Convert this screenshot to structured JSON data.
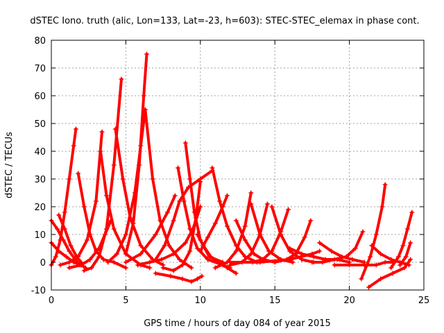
{
  "chart_data": {
    "type": "scatter",
    "title": "dSTEC Iono. truth (alic, Lon=133, Lat=-23, h=603): STEC-STEC_elemax in phase cont.",
    "xlabel": "GPS time / hours of day 084 of year 2015",
    "ylabel": "dSTEC  / TECUs",
    "xlim": [
      0,
      25
    ],
    "ylim": [
      -10,
      80
    ],
    "xticks": [
      "0",
      "5",
      "10",
      "15",
      "20",
      "25"
    ],
    "yticks": [
      "-10",
      "0",
      "10",
      "20",
      "30",
      "40",
      "50",
      "60",
      "70",
      "80"
    ],
    "grid": true,
    "marker": "plus",
    "color": "#ff0000",
    "series": [
      {
        "x": [
          0.0,
          0.3,
          0.6,
          0.9,
          1.2,
          1.5,
          1.65
        ],
        "y": [
          -1,
          2,
          8,
          18,
          30,
          42,
          48
        ]
      },
      {
        "x": [
          0.0,
          0.4,
          0.8,
          1.2,
          1.6,
          1.9
        ],
        "y": [
          15,
          12,
          8,
          4,
          1,
          -1
        ]
      },
      {
        "x": [
          0.0,
          0.5,
          1.0,
          1.5,
          2.0,
          2.3
        ],
        "y": [
          7,
          4,
          2,
          0,
          -1,
          -2
        ]
      },
      {
        "x": [
          0.6,
          1.2,
          1.8,
          2.4,
          3.0,
          3.4
        ],
        "y": [
          -1,
          0,
          2,
          8,
          22,
          47
        ]
      },
      {
        "x": [
          0.5,
          0.9,
          1.3,
          1.7,
          2.0
        ],
        "y": [
          17,
          12,
          6,
          2,
          0
        ]
      },
      {
        "x": [
          1.8,
          2.2,
          2.6,
          3.0,
          3.5,
          4.2,
          5.0
        ],
        "y": [
          32,
          20,
          10,
          4,
          1,
          0,
          -2
        ]
      },
      {
        "x": [
          2.2,
          2.7,
          3.2,
          3.7,
          4.2,
          4.7
        ],
        "y": [
          -3,
          -2,
          2,
          12,
          35,
          66
        ]
      },
      {
        "x": [
          1.2,
          2.0,
          2.6,
          3.2,
          3.6,
          4.0
        ],
        "y": [
          -2,
          -1,
          1,
          5,
          10,
          15
        ]
      },
      {
        "x": [
          3.3,
          3.7,
          4.2,
          5.0,
          6.0,
          6.6
        ],
        "y": [
          40,
          24,
          12,
          3,
          -1,
          -2
        ]
      },
      {
        "x": [
          3.8,
          4.4,
          5.0,
          5.6,
          6.0,
          6.3
        ],
        "y": [
          0,
          3,
          10,
          25,
          42,
          55
        ]
      },
      {
        "x": [
          4.3,
          4.8,
          5.3,
          6.0,
          6.8,
          7.5
        ],
        "y": [
          48,
          30,
          16,
          6,
          1,
          -1
        ]
      },
      {
        "x": [
          5.0,
          5.5,
          5.9,
          6.2,
          6.4
        ],
        "y": [
          3,
          14,
          35,
          60,
          75
        ]
      },
      {
        "x": [
          6.3,
          6.8,
          7.3,
          7.9,
          8.6,
          9.4
        ],
        "y": [
          55,
          30,
          15,
          6,
          1,
          -2
        ]
      },
      {
        "x": [
          5.0,
          6.0,
          7.0,
          7.8,
          8.3
        ],
        "y": [
          0,
          3,
          10,
          18,
          24
        ]
      },
      {
        "x": [
          7.0,
          7.6,
          8.2,
          8.6,
          9.2,
          10.0,
          10.8
        ],
        "y": [
          1,
          6,
          15,
          22,
          27,
          30,
          33
        ]
      },
      {
        "x": [
          5.8,
          6.6,
          7.4,
          8.2,
          9.0,
          9.5,
          10.0
        ],
        "y": [
          -1,
          0,
          1,
          3,
          7,
          12,
          20
        ]
      },
      {
        "x": [
          7.5,
          8.2,
          8.8,
          9.3,
          9.7,
          10.0
        ],
        "y": [
          -2,
          -3,
          -1,
          4,
          16,
          29
        ]
      },
      {
        "x": [
          8.5,
          8.9,
          9.3,
          9.8,
          10.5,
          11.5,
          12.0
        ],
        "y": [
          34,
          22,
          12,
          5,
          1,
          -1,
          -2
        ]
      },
      {
        "x": [
          9.0,
          9.3,
          9.6,
          10.0,
          10.6,
          11.5
        ],
        "y": [
          43,
          30,
          18,
          8,
          2,
          0
        ]
      },
      {
        "x": [
          7.0,
          8.0,
          8.8,
          9.4,
          9.8,
          10.1
        ],
        "y": [
          -4,
          -5,
          -6,
          -7,
          -6,
          -5
        ]
      },
      {
        "x": [
          9.8,
          10.2,
          10.7,
          11.2,
          11.8,
          12.4
        ],
        "y": [
          10,
          6,
          2,
          0,
          -2,
          -4
        ]
      },
      {
        "x": [
          10.8,
          11.3,
          11.8,
          12.4,
          13.0,
          13.8
        ],
        "y": [
          34,
          22,
          13,
          6,
          2,
          0
        ]
      },
      {
        "x": [
          11.0,
          11.8,
          12.4,
          13.0,
          13.4
        ],
        "y": [
          -2,
          0,
          4,
          13,
          25
        ]
      },
      {
        "x": [
          10.0,
          10.5,
          11.0,
          11.5,
          11.8
        ],
        "y": [
          4,
          9,
          14,
          20,
          24
        ]
      },
      {
        "x": [
          12.4,
          13.0,
          13.6,
          14.2,
          15.0
        ],
        "y": [
          15,
          8,
          3,
          1,
          0
        ]
      },
      {
        "x": [
          12.0,
          12.8,
          13.4,
          14.0,
          14.5
        ],
        "y": [
          -1,
          0,
          3,
          10,
          21
        ]
      },
      {
        "x": [
          13.4,
          14.0,
          14.6,
          15.4,
          16.2
        ],
        "y": [
          21,
          10,
          4,
          1,
          0
        ]
      },
      {
        "x": [
          13.5,
          14.2,
          14.8,
          15.4,
          15.9
        ],
        "y": [
          0,
          1,
          4,
          11,
          19
        ]
      },
      {
        "x": [
          14.8,
          15.4,
          16.0,
          16.8,
          17.6
        ],
        "y": [
          20,
          10,
          4,
          1,
          0
        ]
      },
      {
        "x": [
          15.0,
          15.8,
          16.4,
          17.0,
          17.4
        ],
        "y": [
          0,
          1,
          3,
          9,
          15
        ]
      },
      {
        "x": [
          12.0,
          14.0,
          16.0,
          17.5,
          18.0
        ],
        "y": [
          0,
          0,
          1,
          3,
          4
        ]
      },
      {
        "x": [
          16.0,
          16.8,
          17.6,
          18.4,
          19.2,
          20.0
        ],
        "y": [
          5,
          3,
          2,
          1,
          1,
          0
        ]
      },
      {
        "x": [
          17.5,
          18.2,
          19.0,
          19.8,
          20.4,
          20.9
        ],
        "y": [
          0,
          0,
          1,
          2,
          5,
          11
        ]
      },
      {
        "x": [
          18.0,
          18.8,
          19.5,
          20.2,
          21.0
        ],
        "y": [
          7,
          4,
          2,
          1,
          0
        ]
      },
      {
        "x": [
          19.0,
          20.0,
          21.0,
          21.8,
          22.4,
          23.0
        ],
        "y": [
          -1,
          -1,
          -1,
          -1,
          0,
          0
        ]
      },
      {
        "x": [
          20.8,
          21.4,
          21.8,
          22.2,
          22.4
        ],
        "y": [
          -6,
          2,
          10,
          20,
          28
        ]
      },
      {
        "x": [
          21.5,
          22.1,
          22.8,
          23.4,
          24.0
        ],
        "y": [
          6,
          3,
          1,
          0,
          -1
        ]
      },
      {
        "x": [
          21.3,
          22.1,
          22.9,
          23.7,
          24.1
        ],
        "y": [
          -9,
          -6,
          -4,
          -2,
          1
        ]
      },
      {
        "x": [
          22.8,
          23.3,
          23.6,
          23.9,
          24.2
        ],
        "y": [
          -2,
          2,
          6,
          12,
          18
        ]
      },
      {
        "x": [
          23.4,
          23.8,
          24.1
        ],
        "y": [
          -1,
          2,
          7
        ]
      }
    ]
  }
}
